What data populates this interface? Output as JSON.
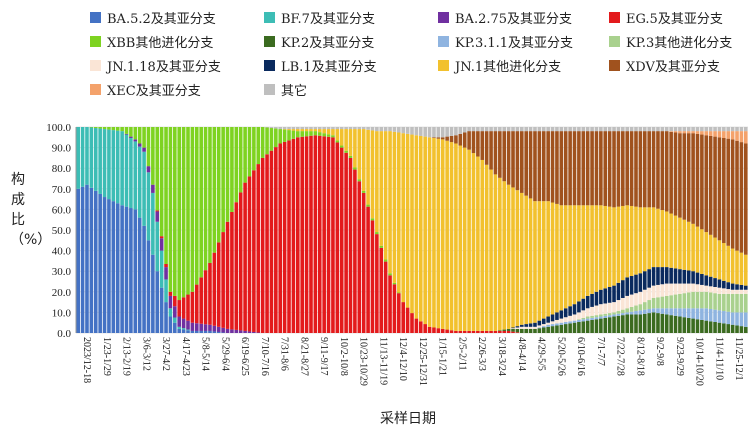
{
  "chart_data": {
    "type": "bar",
    "stacked": true,
    "ylabel": "构成比（%）",
    "xlabel": "采样日期",
    "ylim": [
      0,
      100
    ],
    "yticks": [
      "0.0",
      "10.0",
      "20.0",
      "30.0",
      "40.0",
      "50.0",
      "60.0",
      "70.0",
      "80.0",
      "90.0",
      "100.0"
    ],
    "xtick_labels": [
      "2023/12-18",
      "1/23-1/29",
      "2/13-2/19",
      "3/6-3/12",
      "3/27-4/2",
      "4/17-4/23",
      "5/8-5/14",
      "5/29-6/4",
      "6/19-6/25",
      "7/10-7/16",
      "7/31-8/6",
      "8/21-8/27",
      "9/11-9/17",
      "10/2-10/8",
      "10/23-10/29",
      "11/13-11/19",
      "12/4-12/10",
      "12/25-12/31",
      "1/15-1/21",
      "2/5-2/11",
      "2/26-3/3",
      "3/18-3/24",
      "4/8-4/14",
      "4/29-5/5",
      "5/20-5/26",
      "6/10-6/16",
      "7/1-7/7",
      "7/22-7/28",
      "8/12-8/18",
      "9/2-9/8",
      "9/23-9/29",
      "10/14-10/20",
      "11/4-11/10",
      "11/25-12/1"
    ],
    "legend_position": "top",
    "series": [
      {
        "name": "BA.5.2及其亚分支",
        "color": "#4472C4"
      },
      {
        "name": "BF.7及其亚分支",
        "color": "#3DBDB5"
      },
      {
        "name": "BA.2.75及其亚分支",
        "color": "#7030A0"
      },
      {
        "name": "EG.5及其亚分支",
        "color": "#E31A1C"
      },
      {
        "name": "XBB其他进化分支",
        "color": "#7ED321"
      },
      {
        "name": "KP.2及其亚分支",
        "color": "#3B6B20"
      },
      {
        "name": "KP.3.1.1及其亚分支",
        "color": "#8FB4E0"
      },
      {
        "name": "KP.3其他进化分支",
        "color": "#A9D18E"
      },
      {
        "name": "JN.1.18及其亚分支",
        "color": "#FAE5D6"
      },
      {
        "name": "LB.1及其亚分支",
        "color": "#0A2A5E"
      },
      {
        "name": "JN.1其他进化分支",
        "color": "#F2C12E"
      },
      {
        "name": "XDV及其亚分支",
        "color": "#A0521E"
      },
      {
        "name": "XEC及其亚分支",
        "color": "#F4A26B"
      },
      {
        "name": "其它",
        "color": "#BFBFBF"
      }
    ],
    "keyframes": [
      [
        0,
        [
          70,
          30,
          0,
          0,
          0,
          0,
          0,
          0,
          0,
          0,
          0,
          0,
          0,
          0
        ]
      ],
      [
        2,
        [
          72,
          28,
          0,
          0,
          0,
          0,
          0,
          0,
          0,
          0,
          0,
          0,
          0,
          0
        ]
      ],
      [
        6,
        [
          66,
          33,
          0,
          0,
          1,
          0,
          0,
          0,
          0,
          0,
          0,
          0,
          0,
          0
        ]
      ],
      [
        10,
        [
          62,
          36,
          0,
          0,
          2,
          0,
          0,
          0,
          0,
          0,
          0,
          0,
          0,
          0
        ]
      ],
      [
        13,
        [
          60,
          33,
          1,
          0,
          6,
          0,
          0,
          0,
          0,
          0,
          0,
          0,
          0,
          0
        ]
      ],
      [
        15,
        [
          52,
          36,
          2,
          0,
          10,
          0,
          0,
          0,
          0,
          0,
          0,
          0,
          0,
          0
        ]
      ],
      [
        17,
        [
          38,
          30,
          4,
          0,
          28,
          0,
          0,
          0,
          0,
          0,
          0,
          0,
          0,
          0
        ]
      ],
      [
        19,
        [
          22,
          18,
          6,
          1,
          53,
          0,
          0,
          0,
          0,
          0,
          0,
          0,
          0,
          0
        ]
      ],
      [
        21,
        [
          8,
          4,
          6,
          2,
          80,
          0,
          0,
          0,
          0,
          0,
          0,
          0,
          0,
          0
        ]
      ],
      [
        23,
        [
          2,
          1,
          5,
          8,
          84,
          0,
          0,
          0,
          0,
          0,
          0,
          0,
          0,
          0
        ]
      ],
      [
        26,
        [
          1,
          0,
          4,
          15,
          80,
          0,
          0,
          0,
          0,
          0,
          0,
          0,
          0,
          0
        ]
      ],
      [
        30,
        [
          1,
          0,
          3,
          30,
          66,
          0,
          0,
          0,
          0,
          0,
          0,
          0,
          0,
          0
        ]
      ],
      [
        34,
        [
          0,
          0,
          2,
          52,
          46,
          0,
          0,
          0,
          0,
          0,
          0,
          0,
          0,
          0
        ]
      ],
      [
        38,
        [
          0,
          0,
          1,
          72,
          27,
          0,
          0,
          0,
          0,
          0,
          0,
          0,
          0,
          0
        ]
      ],
      [
        42,
        [
          0,
          0,
          0,
          85,
          15,
          0,
          0,
          0,
          0,
          0,
          0,
          0,
          0,
          0
        ]
      ],
      [
        46,
        [
          0,
          0,
          0,
          92,
          7,
          0,
          0,
          0,
          0,
          0,
          0,
          0,
          0,
          1
        ]
      ],
      [
        50,
        [
          0,
          0,
          0,
          95,
          3,
          0,
          0,
          0,
          0,
          0,
          1,
          0,
          0,
          1
        ]
      ],
      [
        54,
        [
          0,
          0,
          0,
          96,
          2,
          0,
          0,
          0,
          0,
          0,
          1,
          0,
          0,
          1
        ]
      ],
      [
        58,
        [
          0,
          0,
          0,
          95,
          1,
          0,
          0,
          0,
          0,
          0,
          3,
          0,
          0,
          1
        ]
      ],
      [
        62,
        [
          0,
          0,
          0,
          85,
          1,
          0,
          0,
          0,
          0,
          0,
          13,
          0,
          0,
          1
        ]
      ],
      [
        65,
        [
          0,
          0,
          0,
          68,
          1,
          0,
          0,
          0,
          0,
          0,
          30,
          0,
          0,
          1
        ]
      ],
      [
        68,
        [
          0,
          0,
          0,
          48,
          1,
          0,
          0,
          0,
          0,
          0,
          49,
          0,
          0,
          2
        ]
      ],
      [
        71,
        [
          0,
          0,
          0,
          28,
          1,
          0,
          0,
          0,
          0,
          0,
          69,
          0,
          0,
          2
        ]
      ],
      [
        74,
        [
          0,
          0,
          0,
          15,
          0,
          0,
          0,
          0,
          0,
          0,
          82,
          0,
          0,
          3
        ]
      ],
      [
        77,
        [
          0,
          0,
          0,
          7,
          0,
          0,
          0,
          0,
          0,
          0,
          89,
          0,
          0,
          4
        ]
      ],
      [
        80,
        [
          0,
          0,
          0,
          3,
          0,
          0,
          0,
          0,
          0,
          0,
          92,
          0,
          0,
          5
        ]
      ],
      [
        83,
        [
          0,
          0,
          0,
          2,
          0,
          0,
          0,
          0,
          0,
          0,
          92,
          1,
          0,
          5
        ]
      ],
      [
        86,
        [
          0,
          0,
          0,
          1,
          0,
          0,
          0,
          0,
          0,
          0,
          91,
          4,
          0,
          4
        ]
      ],
      [
        89,
        [
          0,
          0,
          0,
          1,
          0,
          0,
          0,
          0,
          0,
          0,
          88,
          9,
          0,
          2
        ]
      ],
      [
        92,
        [
          0,
          0,
          0,
          1,
          0,
          0,
          0,
          0,
          0,
          0,
          83,
          14,
          0,
          2
        ]
      ],
      [
        95,
        [
          0,
          0,
          0,
          1,
          0,
          0,
          0,
          0,
          0,
          0,
          76,
          21,
          0,
          2
        ]
      ],
      [
        98,
        [
          0,
          0,
          0,
          1,
          0,
          1,
          0,
          0,
          0,
          0,
          70,
          26,
          0,
          2
        ]
      ],
      [
        101,
        [
          0,
          0,
          0,
          0,
          0,
          2,
          0,
          0,
          1,
          1,
          64,
          30,
          0,
          2
        ]
      ],
      [
        104,
        [
          0,
          0,
          0,
          0,
          0,
          2,
          0,
          0,
          1,
          2,
          59,
          34,
          0,
          2
        ]
      ],
      [
        107,
        [
          0,
          0,
          0,
          0,
          0,
          3,
          1,
          0,
          1,
          3,
          56,
          34,
          0,
          2
        ]
      ],
      [
        110,
        [
          0,
          0,
          0,
          0,
          0,
          4,
          1,
          0,
          2,
          4,
          51,
          36,
          0,
          2
        ]
      ],
      [
        113,
        [
          0,
          0,
          0,
          0,
          0,
          5,
          1,
          0,
          3,
          5,
          48,
          36,
          0,
          2
        ]
      ],
      [
        116,
        [
          0,
          0,
          0,
          0,
          0,
          6,
          1,
          1,
          4,
          6,
          44,
          36,
          0,
          2
        ]
      ],
      [
        119,
        [
          0,
          0,
          0,
          0,
          0,
          7,
          1,
          1,
          5,
          7,
          41,
          36,
          0,
          2
        ]
      ],
      [
        122,
        [
          0,
          0,
          0,
          0,
          0,
          8,
          1,
          1,
          5,
          8,
          38,
          37,
          0,
          2
        ]
      ],
      [
        125,
        [
          0,
          0,
          0,
          0,
          0,
          9,
          1,
          2,
          6,
          9,
          35,
          36,
          0,
          2
        ]
      ],
      [
        128,
        [
          0,
          0,
          0,
          0,
          0,
          9,
          2,
          3,
          6,
          9,
          32,
          37,
          0,
          2
        ]
      ],
      [
        131,
        [
          0,
          0,
          0,
          0,
          0,
          10,
          2,
          5,
          6,
          9,
          29,
          37,
          0,
          2
        ]
      ],
      [
        134,
        [
          0,
          0,
          0,
          0,
          0,
          9,
          3,
          6,
          6,
          8,
          27,
          39,
          0,
          2
        ]
      ],
      [
        137,
        [
          0,
          0,
          0,
          0,
          0,
          8,
          4,
          7,
          5,
          7,
          25,
          41,
          1,
          2
        ]
      ],
      [
        140,
        [
          0,
          0,
          0,
          0,
          0,
          7,
          5,
          8,
          4,
          6,
          23,
          44,
          1,
          2
        ]
      ],
      [
        143,
        [
          0,
          0,
          0,
          0,
          0,
          6,
          6,
          8,
          3,
          5,
          21,
          47,
          2,
          2
        ]
      ],
      [
        146,
        [
          0,
          0,
          0,
          0,
          0,
          5,
          6,
          8,
          3,
          4,
          19,
          50,
          3,
          2
        ]
      ],
      [
        149,
        [
          0,
          0,
          0,
          0,
          0,
          4,
          6,
          9,
          2,
          3,
          17,
          53,
          4,
          2
        ]
      ],
      [
        152,
        [
          0,
          0,
          0,
          0,
          0,
          3,
          7,
          9,
          2,
          2,
          15,
          54,
          6,
          2
        ]
      ]
    ]
  }
}
